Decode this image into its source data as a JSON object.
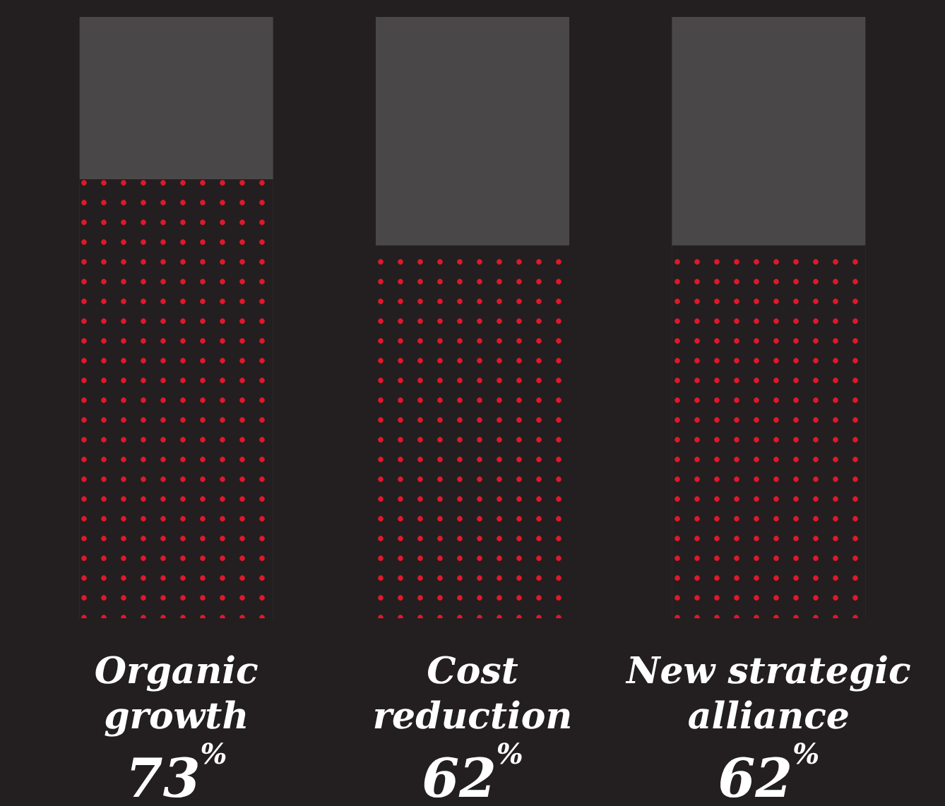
{
  "chart_data": {
    "type": "bar",
    "categories": [
      "Organic growth",
      "Cost reduction",
      "New strategic alliance"
    ],
    "values": [
      73,
      62,
      62
    ],
    "color": "#e3172b",
    "value_labels": [
      "73$^{%}$",
      "62$^{%}$",
      "62$^{%}$"
    ],
    "ylim": [
      0,
      100
    ],
    "tick_labels": "x"
  }
}
